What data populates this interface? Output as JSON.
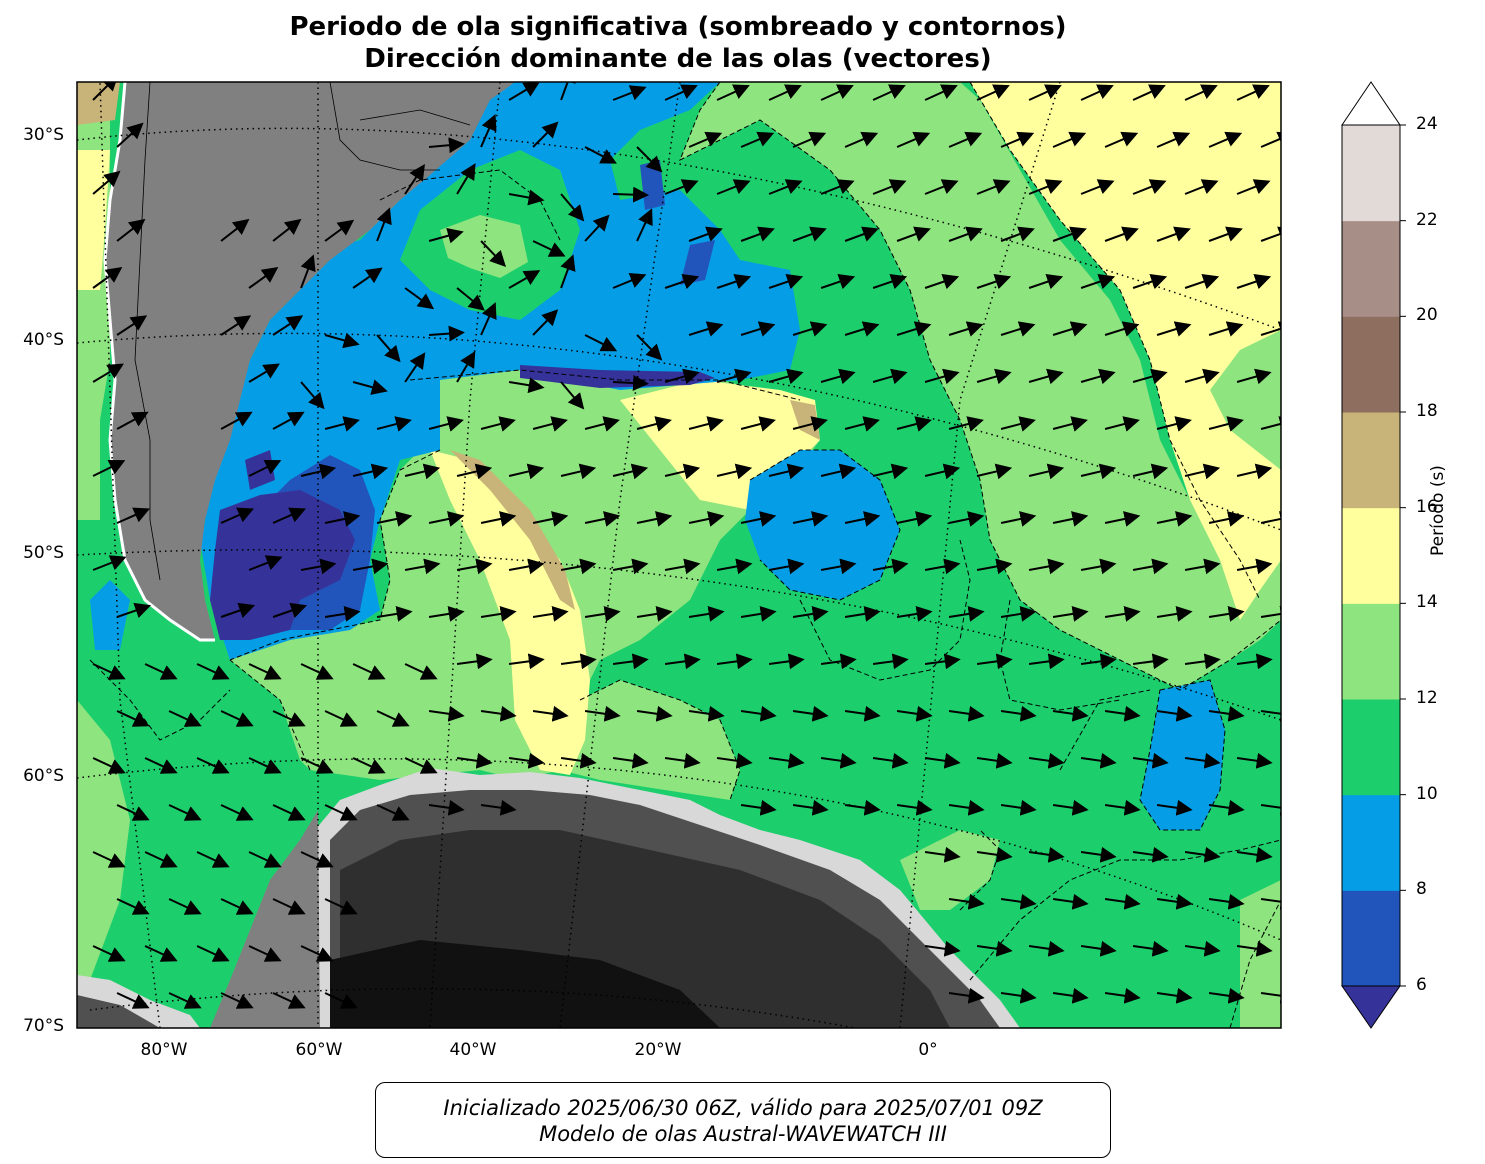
{
  "title": {
    "line1": "Periodo de ola significativa (sombreado y contornos)",
    "line2": "Dirección dominante de las olas (vectores)"
  },
  "map": {
    "lat_labels": [
      "30°S",
      "40°S",
      "50°S",
      "60°S",
      "70°S"
    ],
    "lon_labels": [
      "80°W",
      "60°W",
      "40°W",
      "20°W",
      "0°"
    ],
    "colors": {
      "land": "#808080",
      "antarctica_dark": "#2f2f2f",
      "p6_8": "#2255bb",
      "p8_10": "#059ee6",
      "p10_12": "#1dcf6c",
      "p12_14": "#8ee47e",
      "p14_16": "#ffff9e",
      "p16_18": "#c8b478",
      "below6": "#353399"
    }
  },
  "colorbar": {
    "label": "Período (s)",
    "ticks": [
      "6",
      "8",
      "10",
      "12",
      "14",
      "16",
      "18",
      "20",
      "22",
      "24"
    ],
    "colors": [
      "#2255bb",
      "#059ee6",
      "#1dcf6c",
      "#8ee47e",
      "#ffff9e",
      "#c8b478",
      "#8e6e5e",
      "#a78e86",
      "#e1dad7"
    ],
    "under_color": "#353399",
    "over_color": "#ffffff"
  },
  "footer": {
    "line1": "Inicializado 2025/06/30 06Z, válido para 2025/07/01 09Z",
    "line2": "Modelo de olas Austral-WAVEWATCH III"
  }
}
